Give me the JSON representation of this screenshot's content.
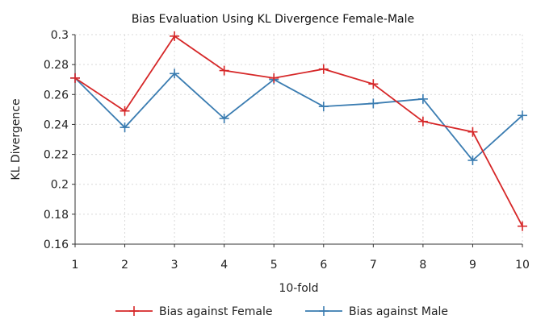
{
  "chart_data": {
    "type": "line",
    "title": "Bias Evaluation Using KL Divergence Female-Male",
    "xlabel": "10-fold",
    "ylabel": "KL Divergence",
    "x": [
      1,
      2,
      3,
      4,
      5,
      6,
      7,
      8,
      9,
      10
    ],
    "xlim": [
      1,
      10
    ],
    "ylim": [
      0.16,
      0.3
    ],
    "yticks": [
      "0.16",
      "0.18",
      "0.2",
      "0.22",
      "0.24",
      "0.26",
      "0.28",
      "0.3"
    ],
    "grid": true,
    "legend_position": "bottom",
    "series": [
      {
        "name": "Bias against Female",
        "color": "#d62728",
        "marker": "plus",
        "values": [
          0.271,
          0.249,
          0.299,
          0.276,
          0.271,
          0.277,
          0.267,
          0.242,
          0.235,
          0.172
        ]
      },
      {
        "name": "Bias against Male",
        "color": "#3a7cb1",
        "marker": "plus",
        "values": [
          0.271,
          0.238,
          0.274,
          0.244,
          0.27,
          0.252,
          0.254,
          0.257,
          0.216,
          0.246
        ]
      }
    ]
  }
}
